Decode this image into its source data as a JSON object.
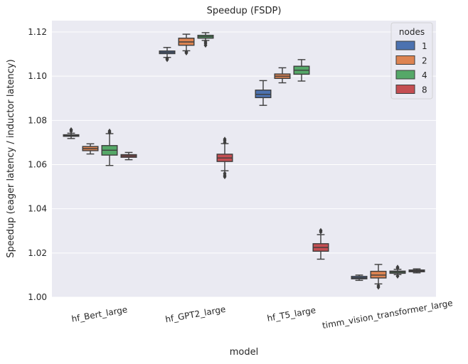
{
  "chart_data": {
    "type": "box",
    "title": "Speedup (FSDP)",
    "xlabel": "model",
    "ylabel": "Speedup (eager latency / inductor latency)",
    "categories": [
      "hf_Bert_large",
      "hf_GPT2_large",
      "hf_T5_large",
      "timm_vision_transformer_large"
    ],
    "ylim": [
      1.0,
      1.12
    ],
    "yticks": [
      "1.00",
      "1.02",
      "1.04",
      "1.06",
      "1.08",
      "1.10",
      "1.12"
    ],
    "grid": true,
    "legend": {
      "title": "nodes",
      "placement": "top-right",
      "entries": [
        "1",
        "2",
        "4",
        "8"
      ]
    },
    "colors": {
      "1": "#4c72b0",
      "2": "#dd8452",
      "4": "#55a868",
      "8": "#c44e52",
      "background": "#eaeaf2",
      "grid": "#ffffff",
      "line": "#3d3d3d"
    },
    "series": [
      {
        "name": "1",
        "boxes": [
          {
            "category": "hf_Bert_large",
            "whislo": 1.0718,
            "q1": 1.0728,
            "med": 1.0732,
            "q3": 1.0735,
            "whishi": 1.0742,
            "fliers": [
              1.0752,
              1.0758
            ]
          },
          {
            "category": "hf_GPT2_large",
            "whislo": 1.1085,
            "q1": 1.1102,
            "med": 1.1108,
            "q3": 1.1114,
            "whishi": 1.113,
            "fliers": [
              1.1075,
              1.108
            ]
          },
          {
            "category": "hf_T5_large",
            "whislo": 1.0868,
            "q1": 1.0903,
            "med": 1.0918,
            "q3": 1.0937,
            "whishi": 1.098,
            "fliers": []
          },
          {
            "category": "timm_vision_transformer_large",
            "whislo": 1.0076,
            "q1": 1.0083,
            "med": 1.0088,
            "q3": 1.0094,
            "whishi": 1.01,
            "fliers": []
          }
        ]
      },
      {
        "name": "2",
        "boxes": [
          {
            "category": "hf_Bert_large",
            "whislo": 1.0648,
            "q1": 1.0663,
            "med": 1.0672,
            "q3": 1.0682,
            "whishi": 1.0694,
            "fliers": []
          },
          {
            "category": "hf_GPT2_large",
            "whislo": 1.1115,
            "q1": 1.114,
            "med": 1.1155,
            "q3": 1.1172,
            "whishi": 1.119,
            "fliers": [
              1.1105,
              1.111
            ]
          },
          {
            "category": "hf_T5_large",
            "whislo": 1.097,
            "q1": 1.099,
            "med": 1.1,
            "q3": 1.101,
            "whishi": 1.1038,
            "fliers": []
          },
          {
            "category": "timm_vision_transformer_large",
            "whislo": 1.006,
            "q1": 1.0087,
            "med": 1.01,
            "q3": 1.0117,
            "whishi": 1.0148,
            "fliers": [
              1.0045,
              1.0052
            ]
          }
        ]
      },
      {
        "name": "4",
        "boxes": [
          {
            "category": "hf_Bert_large",
            "whislo": 1.0596,
            "q1": 1.0643,
            "med": 1.0665,
            "q3": 1.0686,
            "whishi": 1.074,
            "fliers": [
              1.0745,
              1.0752
            ]
          },
          {
            "category": "hf_GPT2_large",
            "whislo": 1.1162,
            "q1": 1.1172,
            "med": 1.1179,
            "q3": 1.1185,
            "whishi": 1.1197,
            "fliers": [
              1.114,
              1.1148,
              1.1155
            ]
          },
          {
            "category": "hf_T5_large",
            "whislo": 1.0978,
            "q1": 1.1009,
            "med": 1.1027,
            "q3": 1.1045,
            "whishi": 1.1075,
            "fliers": []
          },
          {
            "category": "timm_vision_transformer_large",
            "whislo": 1.0102,
            "q1": 1.0108,
            "med": 1.0113,
            "q3": 1.0118,
            "whishi": 1.0126,
            "fliers": [
              1.0095,
              1.0132,
              1.0136
            ]
          }
        ]
      },
      {
        "name": "8",
        "boxes": [
          {
            "category": "hf_Bert_large",
            "whislo": 1.0622,
            "q1": 1.0633,
            "med": 1.0639,
            "q3": 1.0645,
            "whishi": 1.0655,
            "fliers": []
          },
          {
            "category": "hf_GPT2_large",
            "whislo": 1.0572,
            "q1": 1.0614,
            "med": 1.063,
            "q3": 1.0647,
            "whishi": 1.0695,
            "fliers": [
              1.0545,
              1.0552,
              1.056,
              1.07,
              1.0708,
              1.0715
            ]
          },
          {
            "category": "hf_T5_large",
            "whislo": 1.0172,
            "q1": 1.0208,
            "med": 1.0225,
            "q3": 1.0242,
            "whishi": 1.0283,
            "fliers": [
              1.0295,
              1.0302
            ]
          },
          {
            "category": "timm_vision_transformer_large",
            "whislo": 1.011,
            "q1": 1.0115,
            "med": 1.0119,
            "q3": 1.0123,
            "whishi": 1.0128,
            "fliers": []
          }
        ]
      }
    ]
  }
}
